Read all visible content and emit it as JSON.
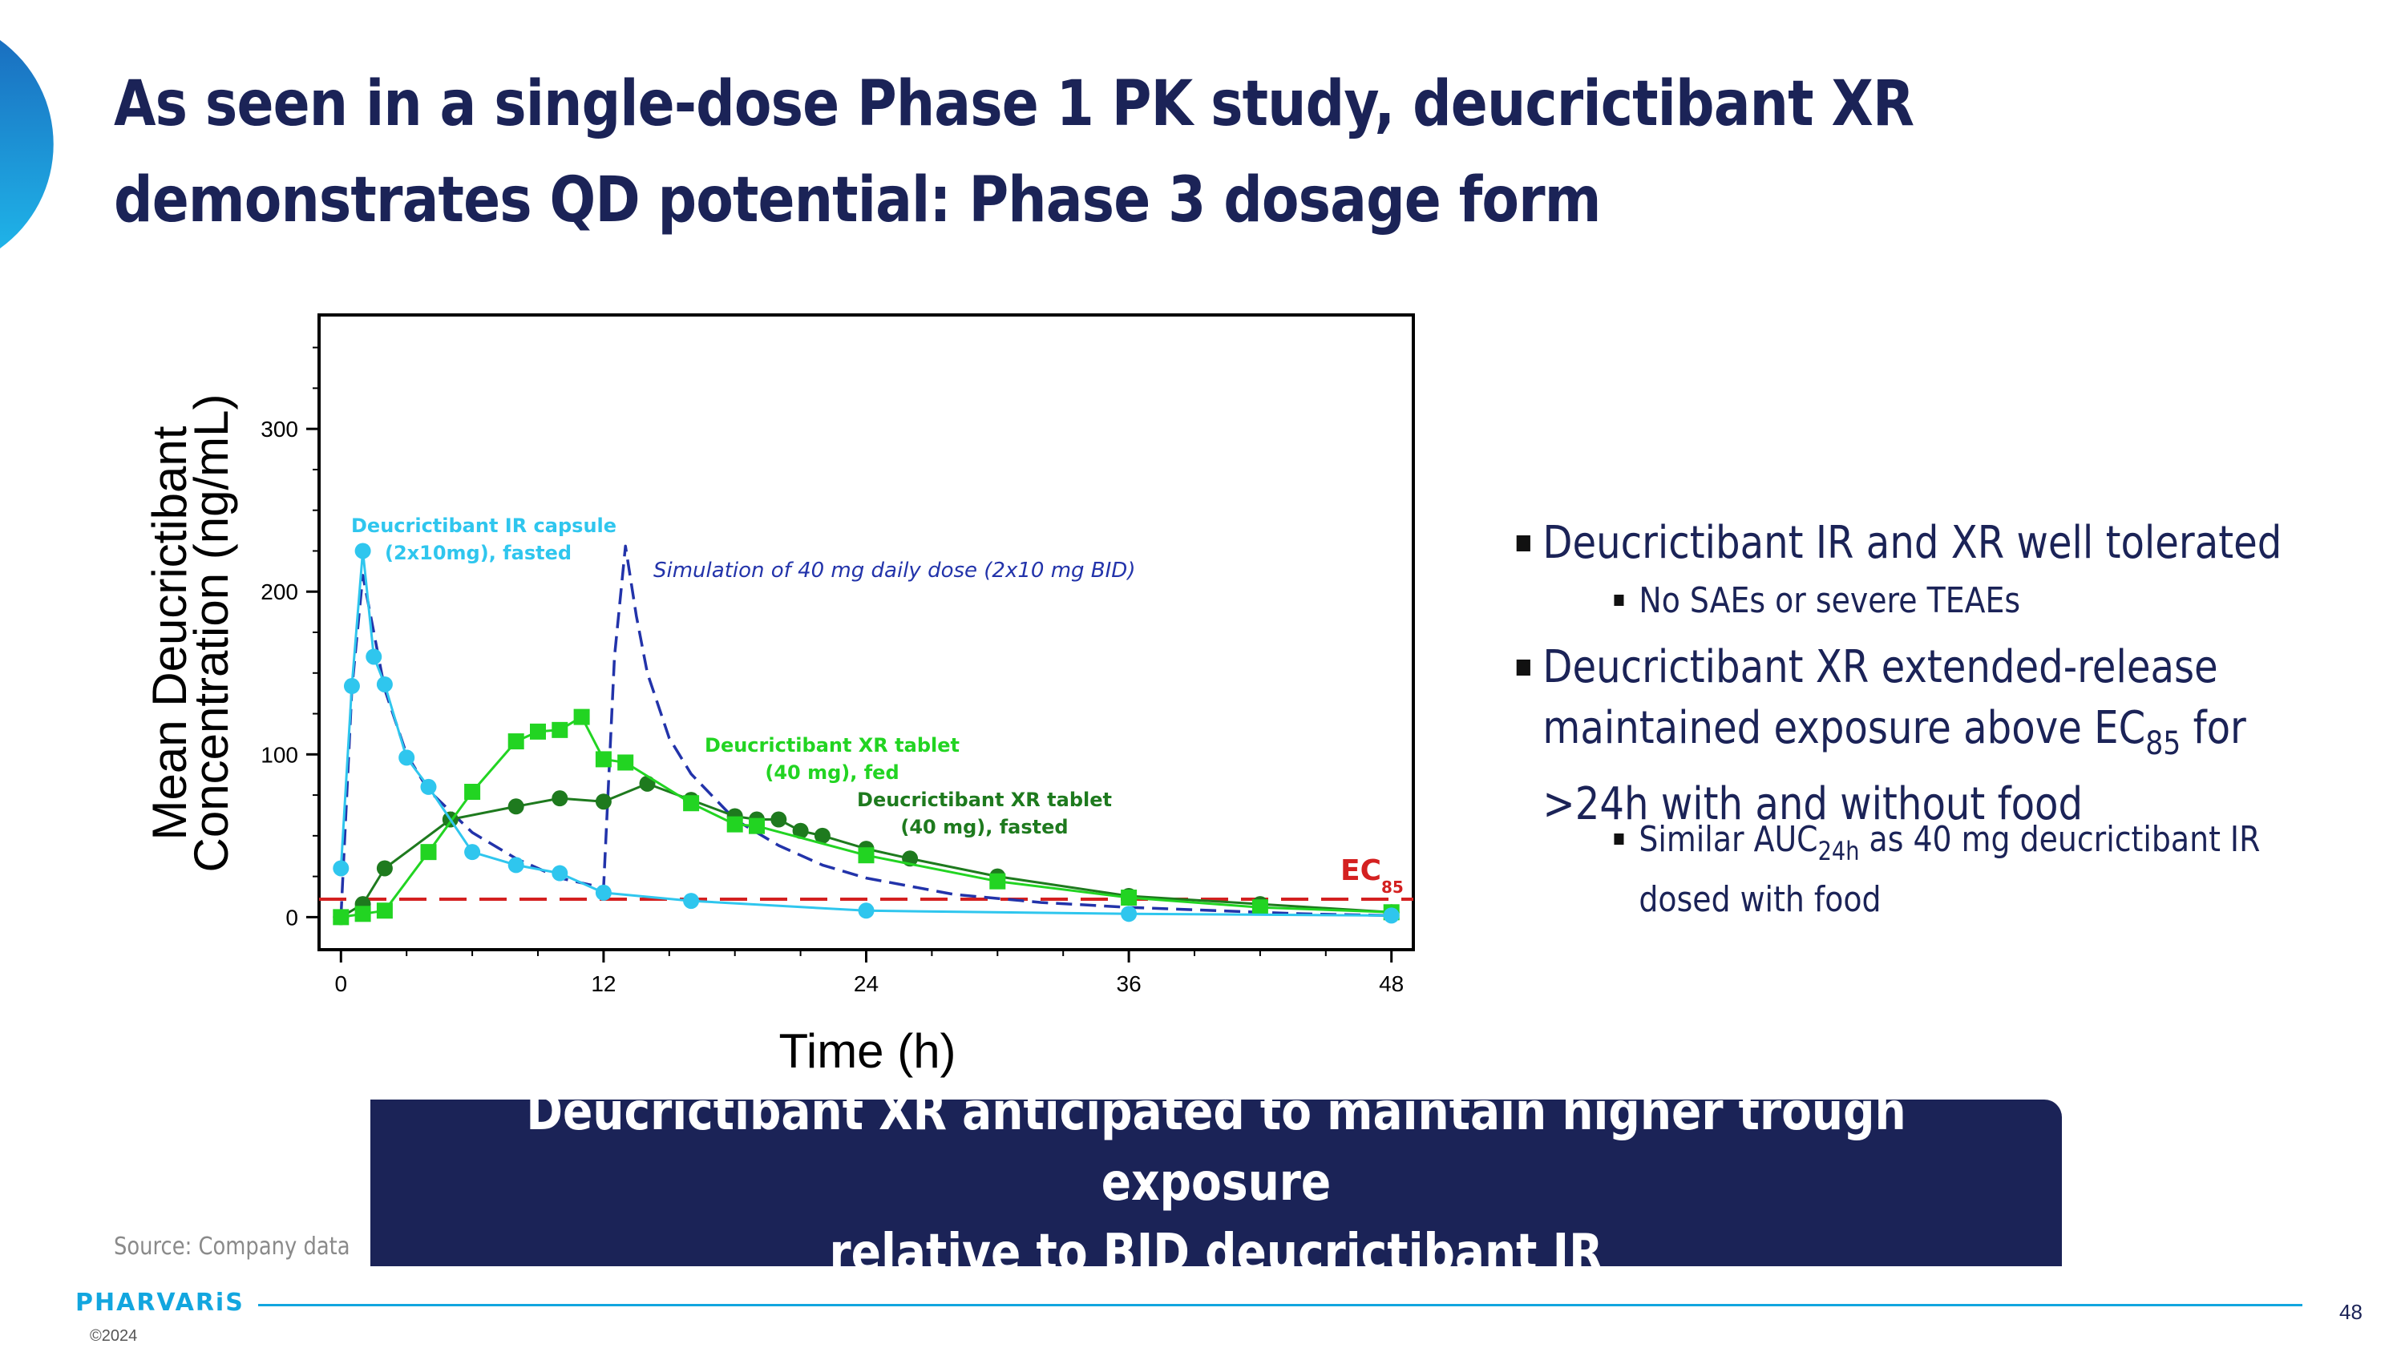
{
  "title": {
    "line1": "As seen in a single-dose Phase 1 PK study, deucrictibant XR",
    "line2": "demonstrates QD potential: Phase 3 dosage form"
  },
  "bullets": {
    "b1": "Deucrictibant IR and XR well tolerated",
    "b1_sub": "No SAEs or severe TEAEs",
    "b2_pre": "Deucrictibant XR extended-release maintained exposure above EC",
    "b2_sub": "85",
    "b2_post": " for >24h with and without food",
    "b2s_pre": "Similar AUC",
    "b2s_sub": "24h",
    "b2s_post": " as 40 mg deucrictibant IR dosed with food"
  },
  "banner": "Deucrictibant XR anticipated to maintain higher trough exposure\nrelative to BID deucrictibant IR",
  "source": "Source: Company data",
  "logo": "PHARVARiS",
  "copyright": "©2024",
  "page_number": "48",
  "colors": {
    "navy": "#1b2357",
    "ir": "#2fc6ee",
    "xr_fed": "#22d422",
    "xr_fasted": "#1e7a1e",
    "simulation": "#2233aa",
    "ec85": "#d42020",
    "accent": "#12a6df"
  },
  "chart_data": {
    "type": "line",
    "xlabel": "Time (h)",
    "ylabel_line1": "Mean Deucrictibant",
    "ylabel_line2": "Concentration (ng/mL)",
    "xlim": [
      -1,
      49
    ],
    "ylim": [
      -20,
      370
    ],
    "xticks": [
      0,
      12,
      24,
      36,
      48
    ],
    "yticks": [
      0,
      100,
      200,
      300
    ],
    "grid": false,
    "series": [
      {
        "key": "ir",
        "label_lines": [
          "Deucrictibant IR capsule",
          "(2x10mg), fasted"
        ],
        "marker": "circle",
        "x": [
          0,
          0.5,
          1,
          1.5,
          2,
          3,
          4,
          6,
          8,
          10,
          12,
          16,
          24,
          36,
          48
        ],
        "y": [
          30,
          142,
          225,
          160,
          143,
          98,
          80,
          40,
          32,
          27,
          15,
          10,
          4,
          2,
          1
        ]
      },
      {
        "key": "xr_fed",
        "label_lines": [
          "Deucrictibant XR tablet",
          "(40 mg), fed"
        ],
        "marker": "square",
        "x": [
          0,
          1,
          2,
          4,
          6,
          8,
          9,
          10,
          11,
          12,
          13,
          16,
          18,
          19,
          24,
          30,
          36,
          42,
          48
        ],
        "y": [
          0,
          2,
          4,
          40,
          77,
          108,
          114,
          115,
          123,
          97,
          95,
          70,
          57,
          56,
          38,
          22,
          12,
          6,
          3
        ]
      },
      {
        "key": "xr_fasted",
        "label_lines": [
          "Deucrictibant XR tablet",
          "(40 mg), fasted"
        ],
        "marker": "circle",
        "x": [
          0,
          1,
          2,
          5,
          8,
          10,
          12,
          14,
          16,
          18,
          19,
          20,
          21,
          22,
          24,
          26,
          30,
          36,
          42,
          48
        ],
        "y": [
          0,
          8,
          30,
          60,
          68,
          73,
          71,
          82,
          72,
          62,
          60,
          60,
          53,
          50,
          42,
          36,
          25,
          13,
          8,
          3
        ]
      },
      {
        "key": "simulation",
        "label": "Simulation of 40 mg daily dose (2x10 mg BID)",
        "style": "dashed",
        "x": [
          0,
          0.5,
          1,
          1.5,
          2,
          3,
          4,
          6,
          8,
          10,
          12,
          12.5,
          13,
          13.5,
          14,
          15,
          16,
          18,
          20,
          22,
          24,
          28,
          32,
          36,
          40,
          44,
          48
        ],
        "y": [
          0,
          140,
          210,
          175,
          140,
          100,
          78,
          52,
          36,
          24,
          18,
          160,
          228,
          185,
          150,
          110,
          88,
          60,
          44,
          32,
          24,
          14,
          9,
          6,
          4,
          2,
          1
        ]
      }
    ],
    "threshold": {
      "label": "EC",
      "label_sub": "85",
      "value": 11
    }
  }
}
